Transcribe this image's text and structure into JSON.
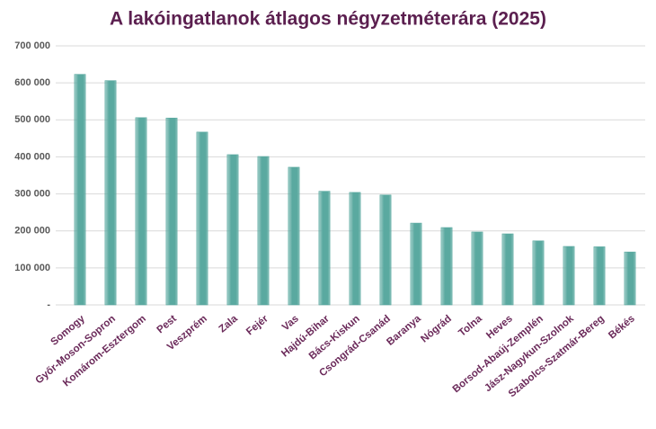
{
  "chart_data": {
    "type": "bar",
    "title": "A lakóingatlanok átlagos négyzetméterára (2025)",
    "categories": [
      "Somogy",
      "Győr-Moson-Sopron",
      "Komárom-Esztergom",
      "Pest",
      "Veszprém",
      "Zala",
      "Fejér",
      "Vas",
      "Hajdú-Bihar",
      "Bács-Kiskun",
      "Csongrád-Csanád",
      "Baranya",
      "Nógrád",
      "Tolna",
      "Heves",
      "Borsod-Abaúj-Zemplén",
      "Jász-Nagykun-Szolnok",
      "Szabolcs-Szatmár-Bereg",
      "Békés"
    ],
    "values": [
      623000,
      606000,
      506000,
      505000,
      467000,
      406000,
      401000,
      372000,
      307000,
      304000,
      297000,
      221000,
      209000,
      197000,
      192000,
      173000,
      158000,
      157000,
      143000
    ],
    "color": "#5aa9a0",
    "ylim": [
      0,
      700000
    ],
    "yticks": [
      {
        "value": 0,
        "label": "-"
      },
      {
        "value": 100000,
        "label": "100 000"
      },
      {
        "value": 200000,
        "label": "200 000"
      },
      {
        "value": 300000,
        "label": "300 000"
      },
      {
        "value": 400000,
        "label": "400 000"
      },
      {
        "value": 500000,
        "label": "500 000"
      },
      {
        "value": 600000,
        "label": "600 000"
      },
      {
        "value": 700000,
        "label": "700 000"
      }
    ],
    "grid": true
  }
}
